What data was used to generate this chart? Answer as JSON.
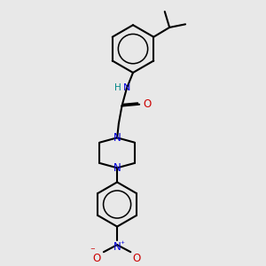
{
  "bg_color": "#e8e8e8",
  "bond_color": "#000000",
  "N_color": "#0000dd",
  "O_color": "#cc0000",
  "H_color": "#008888",
  "line_width": 1.5,
  "dbo": 0.018,
  "fig_w": 3.0,
  "fig_h": 3.0,
  "dpi": 100,
  "xlim": [
    0.0,
    2.2
  ],
  "ylim": [
    0.0,
    3.2
  ]
}
